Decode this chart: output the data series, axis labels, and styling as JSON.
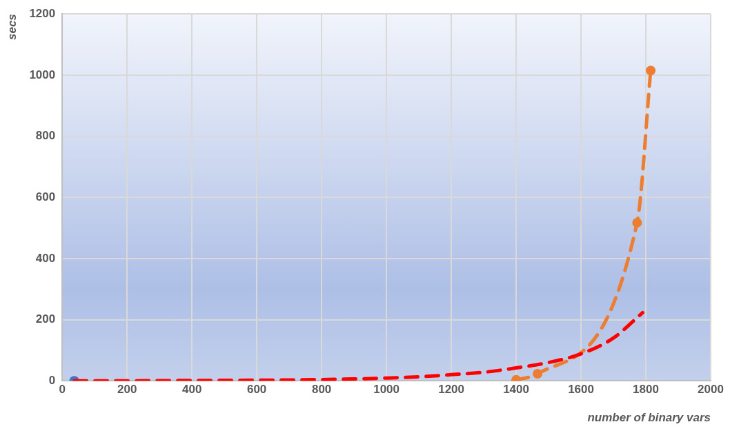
{
  "chart_data": {
    "type": "scatter",
    "xlabel": "number of binary vars",
    "ylabel": "secs",
    "xlim": [
      0,
      2000
    ],
    "xticks": [
      0,
      200,
      400,
      600,
      800,
      1000,
      1200,
      1400,
      1600,
      1800,
      2000
    ],
    "ylim": [
      0,
      1200
    ],
    "yticks": [
      0,
      200,
      400,
      600,
      800,
      1000,
      1200
    ],
    "grid": true,
    "legend": false,
    "series": [
      {
        "type": "line",
        "color": "#ff0000",
        "marker": "none",
        "line_style": "dashed",
        "x": [
          37,
          200,
          400,
          600,
          800,
          1000,
          1100,
          1200,
          1300,
          1400,
          1500,
          1600,
          1700,
          1790
        ],
        "values": [
          0,
          0,
          1,
          2,
          4,
          9,
          13,
          20,
          28,
          42,
          60,
          88,
          140,
          223
        ]
      },
      {
        "type": "line",
        "color": "#ed7d31",
        "marker": "circle",
        "line_style": "dashed",
        "x": [
          1400,
          1466,
          1773,
          1815
        ],
        "values": [
          3,
          23,
          517,
          1015
        ]
      },
      {
        "color": "#4472c4",
        "marker": "circle",
        "x": [
          37
        ],
        "values": [
          0
        ]
      }
    ]
  }
}
